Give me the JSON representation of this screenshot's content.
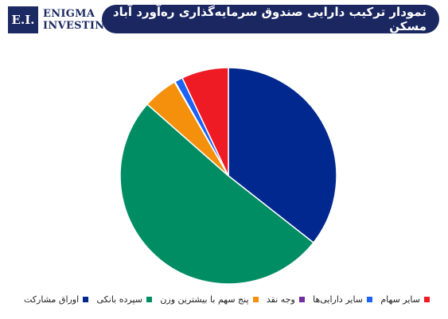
{
  "header": {
    "logo_mark": "E.I.",
    "logo_line1": "ENIGMA",
    "logo_line2": "INVESTING",
    "title": "نمودار ترکیب دارایی صندوق سرمایه‌گذاری ره‌آورد آباد مسکن"
  },
  "chart_data": {
    "type": "pie",
    "title": "نمودار ترکیب دارایی صندوق سرمایه‌گذاری ره‌آورد آباد مسکن",
    "start_angle_deg": 0,
    "direction": "clockwise",
    "legend_position": "bottom",
    "slices": [
      {
        "label": "اوراق مشارکت",
        "value": 35.6,
        "color": "#00288e"
      },
      {
        "label": "سپرده بانکی",
        "value": 50.9,
        "color": "#008d64"
      },
      {
        "label": "پنج سهم با بیشترین وزن",
        "value": 5.2,
        "color": "#f4900c"
      },
      {
        "label": "وجه نقد",
        "value": 0.1,
        "color": "#7030a0"
      },
      {
        "label": "سایر دارایی‌ها",
        "value": 1.2,
        "color": "#1c63f4"
      },
      {
        "label": "سایر سهام",
        "value": 7.0,
        "color": "#ee1b24"
      }
    ]
  }
}
